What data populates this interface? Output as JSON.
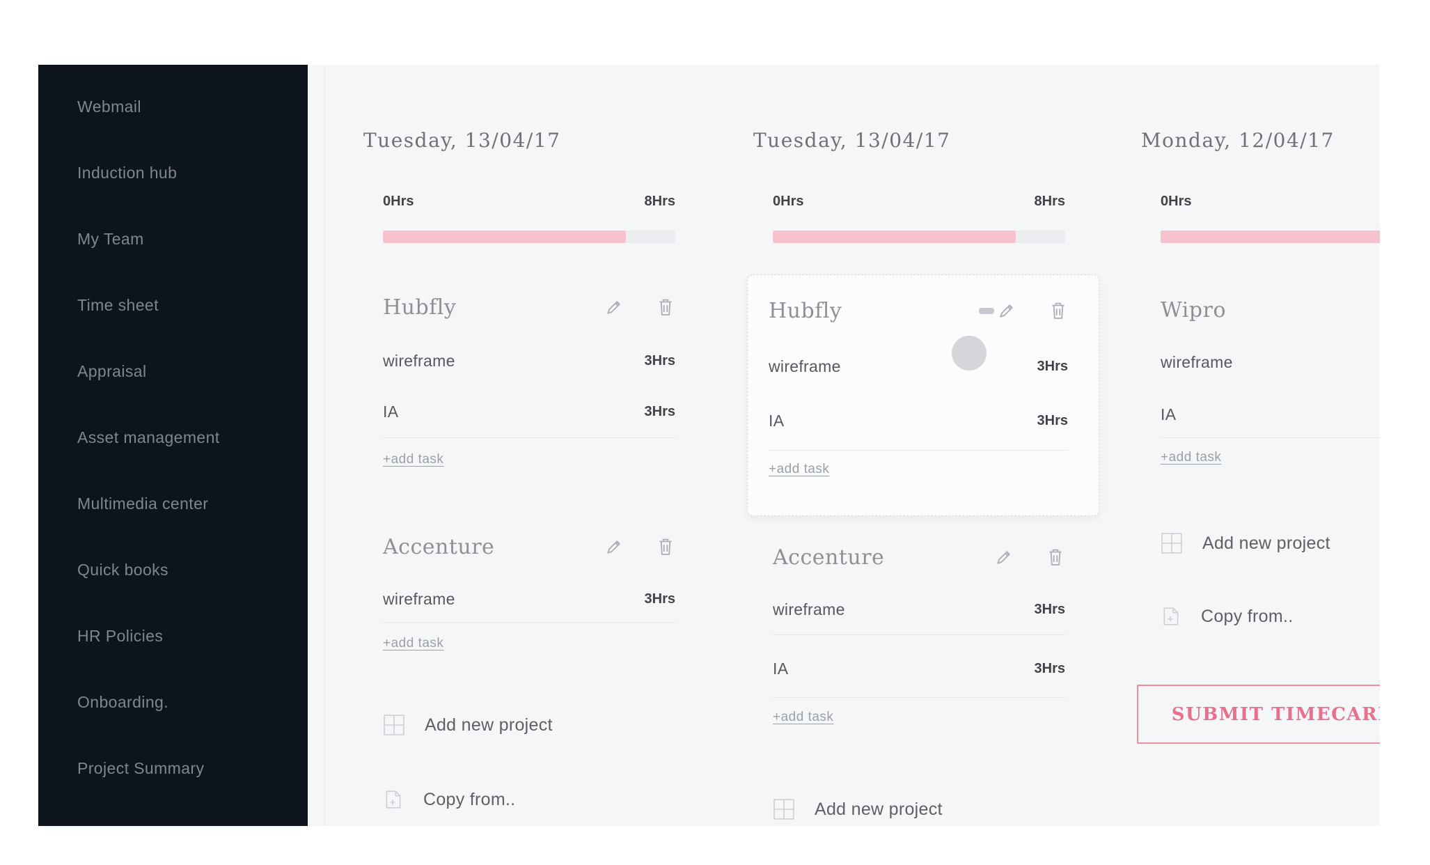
{
  "theme": {
    "sidebar_bg": "#0d141c",
    "progress_pink": "#f5c2ce",
    "progress_track": "#ebedf1",
    "submit_pink": "#e8708d"
  },
  "sidebar": {
    "items": [
      "Webmail",
      "Induction hub",
      "My Team",
      "Time sheet",
      "Appraisal",
      "Asset management",
      "Multimedia center",
      "Quick books",
      "HR Policies",
      "Onboarding.",
      "Project Summary"
    ]
  },
  "timesheet": {
    "columns": [
      {
        "date": "Tuesday, 13/04/17",
        "scale_start": "0Hrs",
        "scale_end": "8Hrs",
        "progress_pct": 83,
        "projects": [
          {
            "name": "Hubfly",
            "tasks": [
              {
                "name": "wireframe",
                "hours": "3Hrs"
              },
              {
                "name": "IA",
                "hours": "3Hrs"
              }
            ],
            "add_task_label": "+add task"
          },
          {
            "name": "Accenture",
            "tasks": [
              {
                "name": "wireframe",
                "hours": "3Hrs"
              }
            ],
            "add_task_label": "+add task"
          }
        ],
        "add_project_label": "Add new project",
        "copy_from_label": "Copy from.."
      },
      {
        "date": "Tuesday, 13/04/17",
        "scale_start": "0Hrs",
        "scale_end": "8Hrs",
        "progress_pct": 83,
        "projects": [
          {
            "name": "Hubfly",
            "state": "dragging",
            "tasks": [
              {
                "name": "wireframe",
                "hours": "3Hrs"
              },
              {
                "name": "IA",
                "hours": "3Hrs"
              }
            ],
            "add_task_label": "+add task"
          },
          {
            "name": "Accenture",
            "tasks": [
              {
                "name": "wireframe",
                "hours": "3Hrs"
              },
              {
                "name": "IA",
                "hours": "3Hrs"
              }
            ],
            "add_task_label": "+add task"
          }
        ],
        "add_project_label": "Add new project"
      },
      {
        "date": "Monday, 12/04/17",
        "scale_start": "0Hrs",
        "progress_pct": 100,
        "projects": [
          {
            "name": "Wipro",
            "tasks": [
              {
                "name": "wireframe"
              },
              {
                "name": "IA"
              }
            ],
            "add_task_label": "+add task"
          }
        ],
        "add_project_label": "Add new project",
        "copy_from_label": "Copy from..",
        "submit_label": "SUBMIT TIMECARD"
      }
    ]
  }
}
